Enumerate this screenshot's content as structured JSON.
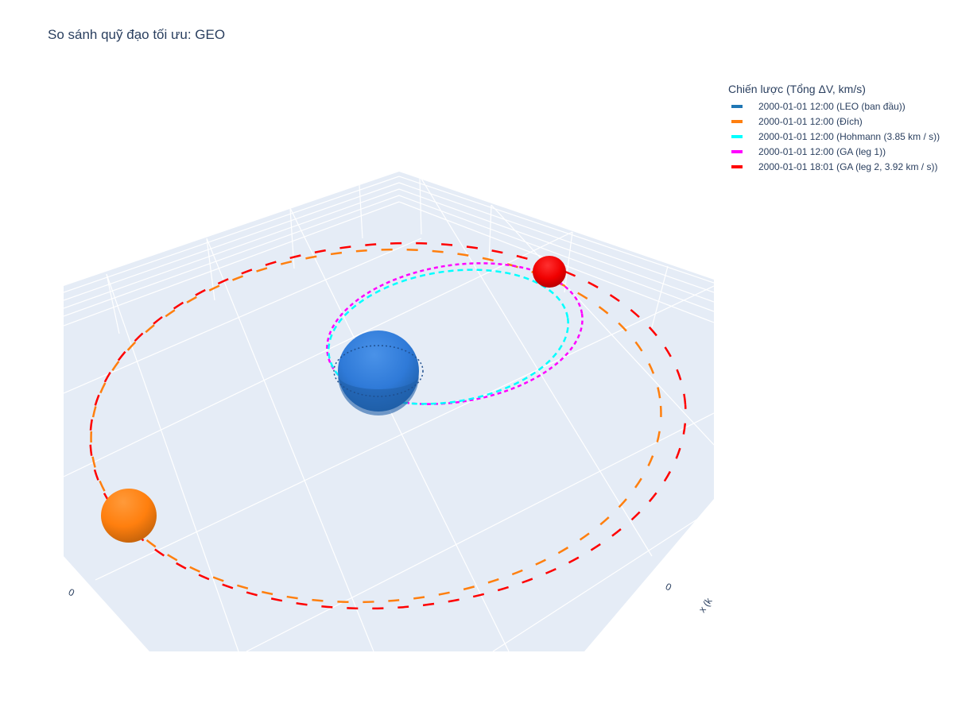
{
  "chart_data": {
    "type": "scatter3d",
    "title": "So sánh quỹ đạo tối ưu: GEO",
    "legend_title": "Chiến lược (Tổng ΔV, km/s)",
    "legend_position": "top-right",
    "axis_labels": {
      "x": "x (k",
      "y": "",
      "z": ""
    },
    "tick_labels": [
      "0",
      "0"
    ],
    "grid": true,
    "series": [
      {
        "name": "2000-01-01 12:00 (LEO (ban đầu))",
        "color": "#1f77b4",
        "line": "dot"
      },
      {
        "name": "2000-01-01 12:00 (Đích)",
        "color": "#ff7f0e",
        "line": "dash"
      },
      {
        "name": "2000-01-01 12:00 (Hohmann (3.85 km / s))",
        "color": "#00ffff",
        "line": "dash"
      },
      {
        "name": "2000-01-01 12:00 (GA (leg 1))",
        "color": "#ff00ff",
        "line": "dot"
      },
      {
        "name": "2000-01-01 18:01 (GA (leg 2, 3.92 km / s))",
        "color": "#ff0000",
        "line": "dash"
      }
    ],
    "bodies": [
      {
        "name": "earth",
        "color": "#2f7ad8",
        "shade": "#1f5fa8"
      },
      {
        "name": "target-sphere",
        "color": "#ff7f0e",
        "shade": "#d9690c"
      },
      {
        "name": "spacecraft-sphere",
        "color": "#ff0000",
        "shade": "#c40000"
      }
    ],
    "scene_background": "#e5ecf6"
  }
}
